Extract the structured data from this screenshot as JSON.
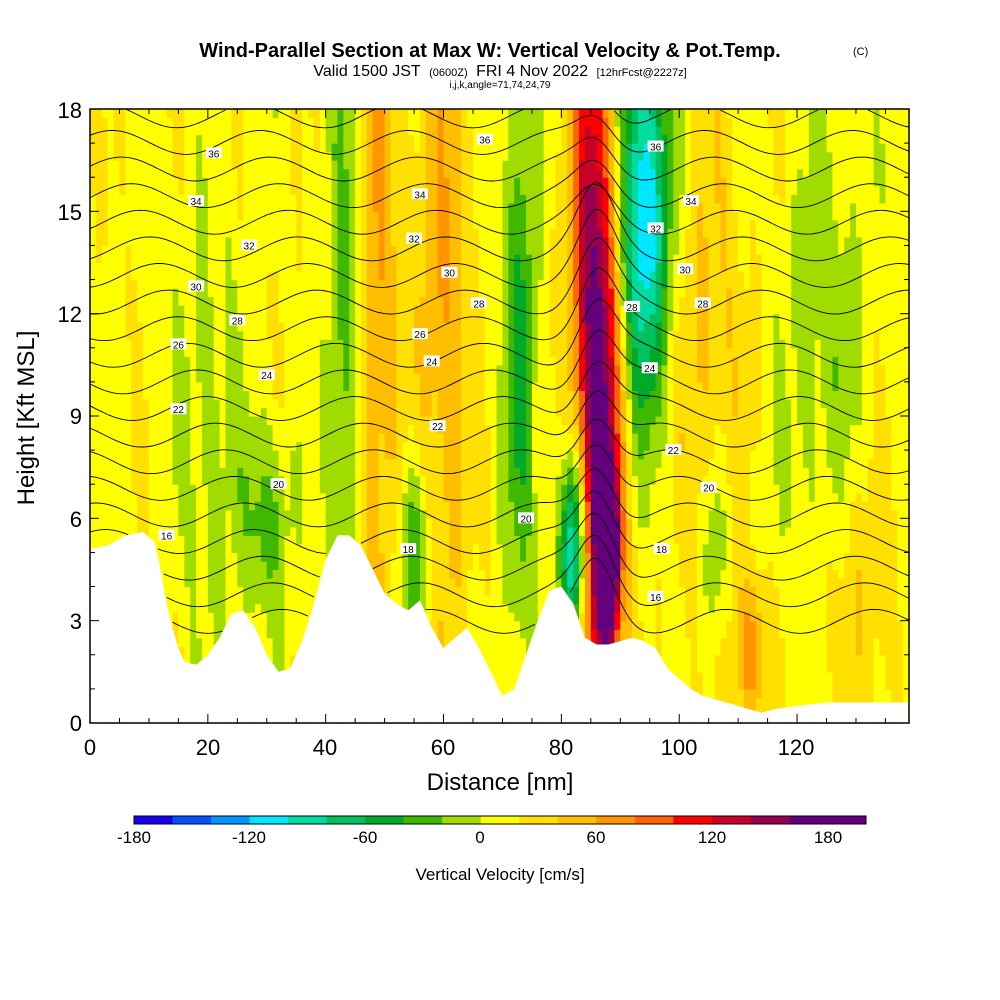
{
  "chart_data": {
    "type": "heatmap",
    "title": "Wind-Parallel Section at Max W: Vertical Velocity & Pot.Temp.",
    "title_mark": "(C)",
    "subtitle_parts": [
      "Valid 1500 JST",
      "(0600Z)",
      "FRI 4 Nov 2022",
      "[12hrFcst@2227z]"
    ],
    "subtitle2": "i,j,k,angle=71,74,24,79",
    "xlabel": "Distance [nm]",
    "ylabel": "Height [Kft MSL]",
    "xlim": [
      0,
      139
    ],
    "ylim": [
      0,
      18
    ],
    "x_ticks": [
      "0",
      "20",
      "40",
      "60",
      "80",
      "100",
      "120"
    ],
    "y_ticks": [
      "0",
      "3",
      "6",
      "9",
      "12",
      "15",
      "18"
    ],
    "colorbar": {
      "title": "Vertical Velocity [cm/s]",
      "tick_labels": [
        "-180",
        "-120",
        "-60",
        "0",
        "60",
        "120",
        "180"
      ],
      "tick_values": [
        -180,
        -120,
        -60,
        0,
        60,
        120,
        180
      ],
      "range": [
        -190,
        190
      ],
      "colors": [
        "#1a00f0",
        "#0050ff",
        "#0096ff",
        "#00e6ff",
        "#00dca0",
        "#00c060",
        "#00aa28",
        "#40b800",
        "#a0dc00",
        "#ffff00",
        "#ffe000",
        "#ffbe00",
        "#ff9600",
        "#ff6400",
        "#ff0000",
        "#c80028",
        "#960050",
        "#64007d",
        "#64007d"
      ]
    },
    "terrain_kft": [
      [
        0,
        5.1
      ],
      [
        3,
        5.2
      ],
      [
        6,
        5.5
      ],
      [
        9,
        5.6
      ],
      [
        11,
        5.3
      ],
      [
        12,
        4.5
      ],
      [
        13,
        3.5
      ],
      [
        14,
        2.8
      ],
      [
        15,
        2.2
      ],
      [
        16,
        1.8
      ],
      [
        18,
        1.7
      ],
      [
        20,
        2.0
      ],
      [
        22,
        2.5
      ],
      [
        24,
        3.2
      ],
      [
        26,
        3.3
      ],
      [
        28,
        2.8
      ],
      [
        30,
        2.0
      ],
      [
        32,
        1.5
      ],
      [
        34,
        1.6
      ],
      [
        36,
        2.4
      ],
      [
        38,
        3.5
      ],
      [
        40,
        4.8
      ],
      [
        42,
        5.5
      ],
      [
        44,
        5.5
      ],
      [
        46,
        5.2
      ],
      [
        48,
        4.5
      ],
      [
        50,
        3.8
      ],
      [
        52,
        3.5
      ],
      [
        54,
        3.3
      ],
      [
        56,
        3.6
      ],
      [
        58,
        2.8
      ],
      [
        60,
        2.2
      ],
      [
        62,
        2.5
      ],
      [
        64,
        2.8
      ],
      [
        66,
        2.2
      ],
      [
        68,
        1.5
      ],
      [
        70,
        0.8
      ],
      [
        72,
        1.0
      ],
      [
        74,
        2.0
      ],
      [
        76,
        3.0
      ],
      [
        78,
        3.9
      ],
      [
        80,
        4.0
      ],
      [
        82,
        3.5
      ],
      [
        84,
        2.5
      ],
      [
        86,
        2.3
      ],
      [
        88,
        2.3
      ],
      [
        90,
        2.4
      ],
      [
        92,
        2.5
      ],
      [
        94,
        2.4
      ],
      [
        96,
        2.2
      ],
      [
        98,
        1.6
      ],
      [
        100,
        1.3
      ],
      [
        102,
        1.0
      ],
      [
        104,
        0.8
      ],
      [
        106,
        0.7
      ],
      [
        108,
        0.6
      ],
      [
        110,
        0.5
      ],
      [
        112,
        0.4
      ],
      [
        114,
        0.3
      ],
      [
        116,
        0.4
      ],
      [
        120,
        0.5
      ],
      [
        125,
        0.6
      ],
      [
        130,
        0.6
      ],
      [
        139,
        0.6
      ]
    ],
    "w_features_cm_s": [
      {
        "x": 87,
        "z": 6,
        "w": 120,
        "sx": 2.5,
        "sz": 7
      },
      {
        "x": 88,
        "z": 5,
        "w": 190,
        "sx": 1.2,
        "sz": 1.5
      },
      {
        "x": 85,
        "z": 14,
        "w": 100,
        "sx": 2.5,
        "sz": 6
      },
      {
        "x": 94,
        "z": 15,
        "w": -140,
        "sx": 3,
        "sz": 4
      },
      {
        "x": 82,
        "z": 5,
        "w": -140,
        "sx": 1.5,
        "sz": 2
      },
      {
        "x": 73,
        "z": 11,
        "w": -60,
        "sx": 2,
        "sz": 6
      },
      {
        "x": 55,
        "z": 5,
        "w": -60,
        "sx": 2,
        "sz": 2
      },
      {
        "x": 43,
        "z": 10,
        "w": -45,
        "sx": 2,
        "sz": 8
      },
      {
        "x": 49,
        "z": 12,
        "w": 45,
        "sx": 2.5,
        "sz": 8
      },
      {
        "x": 60,
        "z": 12,
        "w": 45,
        "sx": 3,
        "sz": 8
      },
      {
        "x": 30,
        "z": 6,
        "w": -45,
        "sx": 3,
        "sz": 2
      },
      {
        "x": 20,
        "z": 9,
        "w": -25,
        "sx": 4,
        "sz": 5
      },
      {
        "x": 106,
        "z": 5,
        "w": -45,
        "sx": 1.5,
        "sz": 2
      },
      {
        "x": 112,
        "z": 2,
        "w": 60,
        "sx": 2,
        "sz": 1.5
      },
      {
        "x": 105,
        "z": 11,
        "w": 30,
        "sx": 4,
        "sz": 5
      },
      {
        "x": 125,
        "z": 10,
        "w": -30,
        "sx": 5,
        "sz": 6
      },
      {
        "x": 130,
        "z": 4,
        "w": 30,
        "sx": 5,
        "sz": 3
      }
    ],
    "theta_contour_labels": [
      {
        "value": "16",
        "x": 13,
        "z": 5.5
      },
      {
        "value": "18",
        "x": 54,
        "z": 5.1
      },
      {
        "value": "16",
        "x": 96,
        "z": 3.7
      },
      {
        "value": "18",
        "x": 97,
        "z": 5.1
      },
      {
        "value": "20",
        "x": 32,
        "z": 7.0
      },
      {
        "value": "20",
        "x": 74,
        "z": 6.0
      },
      {
        "value": "20",
        "x": 105,
        "z": 6.9
      },
      {
        "value": "22",
        "x": 15,
        "z": 9.2
      },
      {
        "value": "22",
        "x": 59,
        "z": 8.7
      },
      {
        "value": "22",
        "x": 99,
        "z": 8.0
      },
      {
        "value": "24",
        "x": 30,
        "z": 10.2
      },
      {
        "value": "24",
        "x": 58,
        "z": 10.6
      },
      {
        "value": "24",
        "x": 95,
        "z": 10.4
      },
      {
        "value": "26",
        "x": 15,
        "z": 11.1
      },
      {
        "value": "26",
        "x": 56,
        "z": 11.4
      },
      {
        "value": "28",
        "x": 25,
        "z": 11.8
      },
      {
        "value": "28",
        "x": 66,
        "z": 12.3
      },
      {
        "value": "28",
        "x": 92,
        "z": 12.2
      },
      {
        "value": "28",
        "x": 104,
        "z": 12.3
      },
      {
        "value": "30",
        "x": 18,
        "z": 12.8
      },
      {
        "value": "30",
        "x": 61,
        "z": 13.2
      },
      {
        "value": "30",
        "x": 101,
        "z": 13.3
      },
      {
        "value": "32",
        "x": 27,
        "z": 14.0
      },
      {
        "value": "32",
        "x": 55,
        "z": 14.2
      },
      {
        "value": "32",
        "x": 96,
        "z": 14.5
      },
      {
        "value": "34",
        "x": 18,
        "z": 15.3
      },
      {
        "value": "34",
        "x": 56,
        "z": 15.5
      },
      {
        "value": "34",
        "x": 102,
        "z": 15.3
      },
      {
        "value": "36",
        "x": 21,
        "z": 16.7
      },
      {
        "value": "36",
        "x": 67,
        "z": 17.1
      },
      {
        "value": "36",
        "x": 96,
        "z": 16.9
      }
    ]
  }
}
